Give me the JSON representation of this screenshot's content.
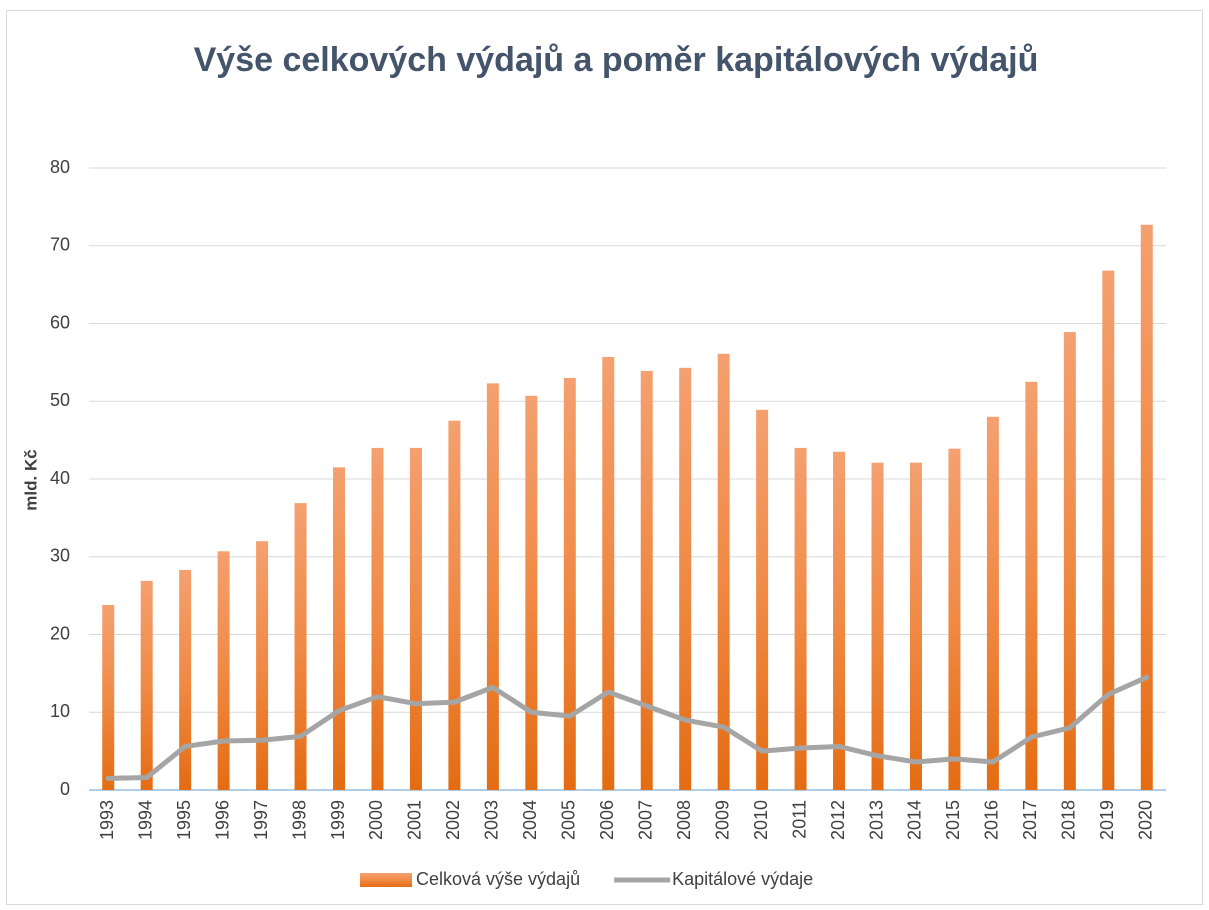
{
  "chart_data": {
    "type": "bar_line",
    "title": "Výše celkových výdajů a poměr kapitálových výdajů",
    "y_label": "mld. Kč",
    "categories": [
      "1993",
      "1994",
      "1995",
      "1996",
      "1997",
      "1998",
      "1999",
      "2000",
      "2001",
      "2002",
      "2003",
      "2004",
      "2005",
      "2006",
      "2007",
      "2008",
      "2009",
      "2010",
      "2011",
      "2012",
      "2013",
      "2014",
      "2015",
      "2016",
      "2017",
      "2018",
      "2019",
      "2020"
    ],
    "series": [
      {
        "name": "Celková výše výdajů",
        "type": "bar",
        "color": "#ed7d31",
        "values": [
          23.8,
          26.9,
          28.3,
          30.7,
          32.0,
          36.9,
          41.5,
          44.0,
          44.0,
          47.5,
          52.3,
          50.7,
          53.0,
          55.7,
          53.9,
          54.3,
          56.1,
          48.9,
          44.0,
          43.5,
          42.1,
          42.1,
          43.9,
          48.0,
          52.5,
          58.9,
          66.8,
          72.7
        ]
      },
      {
        "name": "Kapitálové výdaje",
        "type": "line",
        "color": "#a5a5a5",
        "values": [
          1.5,
          1.6,
          5.6,
          6.3,
          6.4,
          6.9,
          10.2,
          12.0,
          11.1,
          11.3,
          13.2,
          10.0,
          9.5,
          12.6,
          10.8,
          9.0,
          8.1,
          5.0,
          5.4,
          5.6,
          4.4,
          3.6,
          4.0,
          3.6,
          6.8,
          8.0,
          12.3,
          14.5
        ]
      }
    ],
    "ylim": [
      0,
      80
    ],
    "yticks": [
      0,
      10,
      20,
      30,
      40,
      50,
      60,
      70,
      80
    ],
    "grid": true,
    "legend": "bottom"
  }
}
